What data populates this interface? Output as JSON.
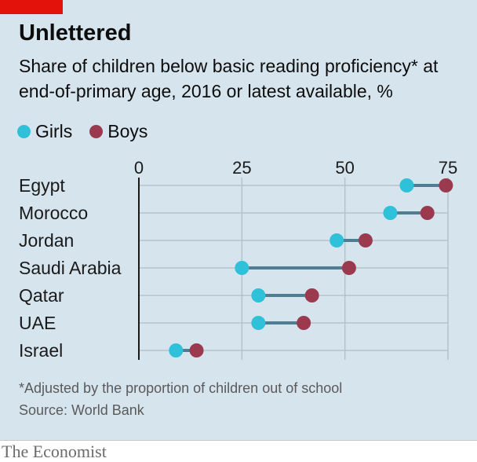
{
  "brand": "The Economist",
  "colors": {
    "girls": "#2ec1d9",
    "boys": "#9b3a4f",
    "connector": "#4f7e93",
    "grid": "#b5c2cb",
    "axis": "#1a1a1a",
    "tag": "#e3120b"
  },
  "chart_data": {
    "type": "dumbbell",
    "title": "Unlettered",
    "subtitle": "Share of children below basic reading proficiency* at end-of-primary age, 2016 or latest available, %",
    "xlim": [
      0,
      75
    ],
    "x_ticks": [
      "0",
      "25",
      "50",
      "75"
    ],
    "grid": true,
    "legend_position": "top-left",
    "categories": [
      "Egypt",
      "Morocco",
      "Jordan",
      "Saudi Arabia",
      "Qatar",
      "UAE",
      "Israel"
    ],
    "series": [
      {
        "name": "Girls",
        "values": [
          65,
          61,
          48,
          25,
          29,
          29,
          9
        ]
      },
      {
        "name": "Boys",
        "values": [
          74.5,
          70,
          55,
          51,
          42,
          40,
          14
        ]
      }
    ],
    "footnote": "*Adjusted by the proportion of children out of school",
    "source": "Source: World Bank"
  }
}
